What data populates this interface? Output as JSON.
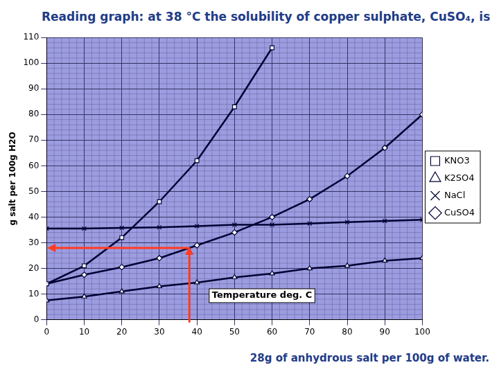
{
  "chart_data": {
    "type": "line",
    "title": "Reading graph: at 38 °C the solubility of copper sulphate, CuSO₄, is",
    "x_label": "Temperature deg. C",
    "y_label": "g salt per 100g H2O",
    "annotations": [
      "28g of anhydrous salt per 100g of water."
    ],
    "reading_point": {
      "x": 38,
      "y": 28
    },
    "x": [
      0,
      10,
      20,
      30,
      40,
      50,
      60,
      70,
      80,
      90,
      100
    ],
    "series": [
      {
        "name": "KNO3",
        "color": "#000033",
        "marker": "square",
        "values": [
          14,
          21,
          32,
          46,
          62,
          83,
          106,
          null,
          null,
          null,
          null
        ]
      },
      {
        "name": "K2SO4",
        "color": "#000033",
        "marker": "triangle",
        "values": [
          7.5,
          9,
          11,
          13,
          14.5,
          16.5,
          18,
          20,
          21,
          23,
          24
        ]
      },
      {
        "name": "NaCl",
        "color": "#000033",
        "marker": "cross",
        "values": [
          35.5,
          35.5,
          35.8,
          36,
          36.5,
          37,
          37,
          37.5,
          38,
          38.5,
          39
        ]
      },
      {
        "name": "CuSO4",
        "color": "#000033",
        "marker": "diamond",
        "values": [
          14,
          17.5,
          20.5,
          24,
          29,
          34,
          40,
          47,
          56,
          67,
          80
        ]
      }
    ],
    "xlim": [
      0,
      100
    ],
    "xticks": [
      0,
      10,
      20,
      30,
      40,
      50,
      60,
      70,
      80,
      90,
      100
    ],
    "ylim": [
      0,
      110
    ],
    "yticks": [
      0,
      10,
      20,
      30,
      40,
      50,
      60,
      70,
      80,
      90,
      100,
      110
    ],
    "grid": true,
    "legend": "right"
  }
}
